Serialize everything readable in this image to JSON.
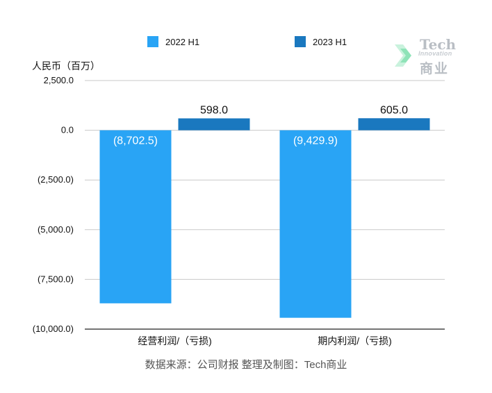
{
  "chart_data": {
    "type": "bar",
    "unit_label": "人民币（百万）",
    "categories": [
      "经营利润/（亏损)",
      "期内利润/（亏损)"
    ],
    "series": [
      {
        "name": "2022 H1",
        "color": "#29a4f5",
        "values": [
          -8702.5,
          -9429.9
        ],
        "labels": [
          "(8,702.5)",
          "(9,429.9)"
        ]
      },
      {
        "name": "2023 H1",
        "color": "#1a78bf",
        "values": [
          598.0,
          605.0
        ],
        "labels": [
          "598.0",
          "605.0"
        ]
      }
    ],
    "ylim": [
      -10000,
      2500
    ],
    "yticks": [
      2500,
      0,
      -2500,
      -5000,
      -7500,
      -10000
    ],
    "ytick_labels": [
      "2,500.0",
      "0.0",
      "(2,500.0)",
      "(5,000.0)",
      "(7,500.0)",
      "(10,000.0)"
    ],
    "grid": true,
    "legend_position": "top"
  },
  "source_note": "数据来源：公司财报 整理及制图：Tech商业",
  "logo": {
    "line1": "Tech",
    "line2": "Innovation",
    "line3": "商业"
  }
}
